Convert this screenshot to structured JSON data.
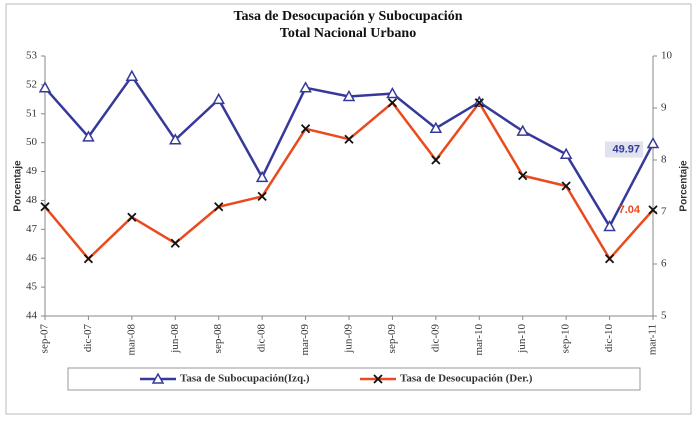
{
  "chart_data": {
    "type": "line",
    "title": "Tasa de Desocupación y Subocupación",
    "subtitle": "Total Nacional Urbano",
    "y_label": "Porcentaje",
    "y2_label": "Porcentaje",
    "categories": [
      "sep-07",
      "dic-07",
      "mar-08",
      "jun-08",
      "sep-08",
      "dic-08",
      "mar-09",
      "jun-09",
      "sep-09",
      "dic-09",
      "mar-10",
      "jun-10",
      "sep-10",
      "dic-10",
      "mar-11"
    ],
    "series": [
      {
        "name": "Tasa de Subocupación(Izq.)",
        "color": "#36399a",
        "marker": "triangle",
        "values": [
          51.9,
          50.2,
          52.3,
          50.1,
          51.5,
          48.8,
          51.9,
          51.6,
          51.7,
          50.5,
          51.4,
          50.4,
          49.6,
          47.1,
          49.97
        ],
        "value_labels": [
          null,
          null,
          null,
          null,
          null,
          null,
          null,
          null,
          null,
          null,
          null,
          null,
          null,
          null,
          "49.97"
        ]
      },
      {
        "name": "Tasa de Desocupación (Der.)",
        "color": "#ea4a1e",
        "marker": "x",
        "axis": "y2",
        "values": [
          7.1,
          6.1,
          6.9,
          6.4,
          7.1,
          7.3,
          8.6,
          8.4,
          9.1,
          8.0,
          9.1,
          7.7,
          7.5,
          6.1,
          7.04
        ],
        "value_labels": [
          null,
          null,
          null,
          null,
          null,
          null,
          null,
          null,
          null,
          null,
          null,
          null,
          null,
          null,
          "7.04"
        ]
      }
    ],
    "ylim": [
      44,
      53
    ],
    "yticks": [
      44,
      45,
      46,
      47,
      48,
      49,
      50,
      51,
      52,
      53
    ],
    "y2lim": [
      5,
      10
    ],
    "y2ticks": [
      5,
      6,
      7,
      8,
      9,
      10
    ],
    "grid": false,
    "legend": "bottom"
  }
}
